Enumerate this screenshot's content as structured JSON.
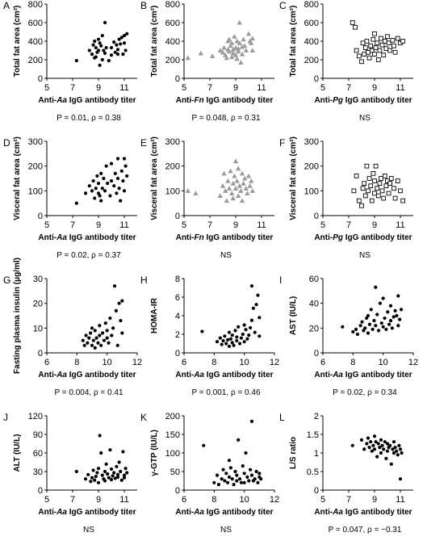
{
  "chart_data": [
    {
      "panel": "A",
      "type": "scatter",
      "marker": "circle",
      "color": "#000000",
      "xlabel": "Anti-Aa IgG antibody titer",
      "xlabel_italic": "Aa",
      "ylabel": "Total fat area (cm²)",
      "xticks": [
        "5",
        "7",
        "9",
        "11"
      ],
      "yticks": [
        "0",
        "200",
        "400",
        "600",
        "800"
      ],
      "xlim": [
        5,
        12
      ],
      "ylim": [
        0,
        800
      ],
      "note": "P = 0.01, ρ = 0.38",
      "x": [
        7.3,
        8.3,
        8.5,
        8.6,
        8.7,
        8.7,
        8.8,
        8.8,
        8.9,
        9.0,
        9.0,
        9.1,
        9.1,
        9.2,
        9.3,
        9.3,
        9.4,
        9.5,
        9.5,
        9.6,
        9.8,
        10.0,
        10.0,
        10.2,
        10.3,
        10.4,
        10.5,
        10.5,
        10.6,
        10.7,
        10.8,
        10.9,
        11.0,
        11.0,
        11.1,
        11.2
      ],
      "y": [
        190,
        300,
        260,
        360,
        220,
        400,
        330,
        230,
        280,
        420,
        300,
        140,
        380,
        350,
        200,
        460,
        300,
        600,
        270,
        330,
        190,
        330,
        250,
        390,
        280,
        360,
        310,
        260,
        420,
        370,
        440,
        260,
        380,
        460,
        300,
        480
      ]
    },
    {
      "panel": "B",
      "type": "scatter",
      "marker": "triangle",
      "color": "#9a9a9a",
      "xlabel": "Anti-Fn IgG antibody titer",
      "xlabel_italic": "Fn",
      "ylabel": "Total fat area (cm²)",
      "xticks": [
        "5",
        "7",
        "9",
        "11"
      ],
      "yticks": [
        "0",
        "200",
        "400",
        "600",
        "800"
      ],
      "xlim": [
        5,
        12
      ],
      "ylim": [
        0,
        800
      ],
      "note": "P = 0.048, ρ = 0.31",
      "x": [
        5.3,
        6.3,
        7.2,
        7.8,
        8.0,
        8.1,
        8.2,
        8.3,
        8.4,
        8.4,
        8.5,
        8.5,
        8.6,
        8.7,
        8.7,
        8.8,
        8.8,
        8.9,
        9.0,
        9.0,
        9.1,
        9.1,
        9.2,
        9.2,
        9.3,
        9.3,
        9.4,
        9.5,
        9.5,
        9.6,
        9.7,
        9.8,
        10.0,
        10.1,
        10.2,
        10.3,
        10.3
      ],
      "y": [
        220,
        270,
        240,
        300,
        280,
        330,
        250,
        220,
        400,
        310,
        290,
        420,
        350,
        230,
        380,
        310,
        270,
        450,
        330,
        250,
        400,
        210,
        320,
        290,
        600,
        380,
        170,
        340,
        260,
        420,
        350,
        300,
        480,
        400,
        380,
        300,
        430
      ]
    },
    {
      "panel": "C",
      "type": "scatter",
      "marker": "square-open",
      "color": "#000000",
      "xlabel": "Anti-Pg IgG antibody titer",
      "xlabel_italic": "Pg",
      "ylabel": "Total fat area (cm²)",
      "xticks": [
        "5",
        "7",
        "9",
        "11"
      ],
      "yticks": [
        "0",
        "200",
        "400",
        "600",
        "800"
      ],
      "xlim": [
        5,
        12
      ],
      "ylim": [
        0,
        800
      ],
      "note": "NS",
      "x": [
        7.3,
        7.5,
        7.6,
        7.8,
        8.0,
        8.1,
        8.2,
        8.3,
        8.4,
        8.5,
        8.6,
        8.7,
        8.8,
        8.9,
        9.0,
        9.0,
        9.1,
        9.2,
        9.3,
        9.4,
        9.5,
        9.6,
        9.7,
        9.8,
        9.9,
        10.0,
        10.1,
        10.2,
        10.4,
        10.5,
        10.6,
        10.8,
        11.0,
        11.2
      ],
      "y": [
        600,
        550,
        300,
        240,
        180,
        380,
        260,
        330,
        400,
        280,
        220,
        350,
        300,
        420,
        260,
        480,
        330,
        380,
        200,
        300,
        430,
        360,
        250,
        400,
        320,
        450,
        380,
        300,
        410,
        350,
        280,
        430,
        380,
        400
      ]
    },
    {
      "panel": "D",
      "type": "scatter",
      "marker": "circle",
      "color": "#000000",
      "xlabel": "Anti-Aa IgG antibody titer",
      "xlabel_italic": "Aa",
      "ylabel": "Visceral fat area (cm²)",
      "xticks": [
        "5",
        "7",
        "9",
        "11"
      ],
      "yticks": [
        "0",
        "100",
        "200",
        "300"
      ],
      "xlim": [
        5,
        12
      ],
      "ylim": [
        0,
        300
      ],
      "note": "P = 0.02, ρ = 0.37",
      "x": [
        7.3,
        8.0,
        8.3,
        8.5,
        8.6,
        8.7,
        8.8,
        8.9,
        9.0,
        9.0,
        9.1,
        9.2,
        9.2,
        9.3,
        9.4,
        9.5,
        9.6,
        9.7,
        9.9,
        10.0,
        10.0,
        10.2,
        10.3,
        10.4,
        10.5,
        10.5,
        10.6,
        10.7,
        10.8,
        10.9,
        11.0,
        11.0,
        11.1,
        11.2
      ],
      "y": [
        50,
        90,
        120,
        100,
        140,
        70,
        110,
        160,
        90,
        130,
        80,
        170,
        60,
        110,
        150,
        100,
        200,
        130,
        80,
        210,
        140,
        120,
        170,
        90,
        230,
        150,
        110,
        60,
        180,
        140,
        230,
        100,
        200,
        160
      ]
    },
    {
      "panel": "E",
      "type": "scatter",
      "marker": "triangle",
      "color": "#9a9a9a",
      "xlabel": "Anti-Fn IgG antibody titer",
      "xlabel_italic": "Fn",
      "ylabel": "Visceral fat area (cm²)",
      "xticks": [
        "5",
        "7",
        "9",
        "11"
      ],
      "yticks": [
        "0",
        "100",
        "200",
        "300"
      ],
      "xlim": [
        5,
        12
      ],
      "ylim": [
        0,
        300
      ],
      "note": "NS",
      "x": [
        5.3,
        5.9,
        7.8,
        8.0,
        8.1,
        8.2,
        8.3,
        8.4,
        8.5,
        8.6,
        8.7,
        8.8,
        8.8,
        8.9,
        9.0,
        9.0,
        9.1,
        9.2,
        9.2,
        9.3,
        9.4,
        9.5,
        9.5,
        9.6,
        9.7,
        9.8,
        9.9,
        10.0,
        10.1,
        10.2,
        10.3
      ],
      "y": [
        100,
        90,
        80,
        120,
        170,
        100,
        60,
        140,
        110,
        180,
        90,
        130,
        70,
        160,
        220,
        110,
        140,
        80,
        190,
        120,
        100,
        170,
        60,
        130,
        150,
        110,
        90,
        160,
        120,
        140,
        100
      ]
    },
    {
      "panel": "F",
      "type": "scatter",
      "marker": "square-open",
      "color": "#000000",
      "xlabel": "Anti-Pg IgG antibody titer",
      "xlabel_italic": "Pg",
      "ylabel": "Visceral fat area (cm²)",
      "xticks": [
        "5",
        "7",
        "9",
        "11"
      ],
      "yticks": [
        "0",
        "100",
        "200",
        "300"
      ],
      "xlim": [
        5,
        12
      ],
      "ylim": [
        0,
        300
      ],
      "note": "NS",
      "x": [
        7.4,
        7.6,
        7.8,
        8.0,
        8.1,
        8.2,
        8.3,
        8.4,
        8.5,
        8.6,
        8.7,
        8.8,
        8.9,
        9.0,
        9.0,
        9.1,
        9.2,
        9.3,
        9.4,
        9.5,
        9.6,
        9.7,
        9.8,
        9.9,
        10.0,
        10.1,
        10.2,
        10.3,
        10.5,
        10.6,
        10.8,
        11.0,
        11.2
      ],
      "y": [
        100,
        160,
        60,
        40,
        110,
        130,
        80,
        200,
        100,
        150,
        120,
        60,
        170,
        140,
        90,
        200,
        110,
        80,
        130,
        150,
        100,
        70,
        160,
        120,
        140,
        90,
        130,
        150,
        110,
        70,
        140,
        100,
        60
      ]
    },
    {
      "panel": "G",
      "type": "scatter",
      "marker": "circle",
      "color": "#000000",
      "xlabel": "Anti-Aa IgG antibody titer",
      "xlabel_italic": "Aa",
      "ylabel": "Fasting plasma insulin (μg/ml)",
      "xticks": [
        "6",
        "8",
        "10",
        "12"
      ],
      "yticks": [
        "0",
        "10",
        "20",
        "30"
      ],
      "xlim": [
        6,
        12
      ],
      "ylim": [
        0,
        30
      ],
      "note": "P = 0.004, ρ = 0.41",
      "x": [
        8.4,
        8.5,
        8.6,
        8.7,
        8.8,
        8.9,
        9.0,
        9.0,
        9.1,
        9.2,
        9.2,
        9.3,
        9.4,
        9.5,
        9.5,
        9.6,
        9.7,
        9.8,
        9.9,
        10.0,
        10.0,
        10.1,
        10.2,
        10.3,
        10.4,
        10.5,
        10.6,
        10.7,
        10.8,
        10.9,
        11.0,
        11.0
      ],
      "y": [
        5,
        3,
        7,
        4,
        6,
        8,
        3,
        10,
        5,
        9,
        2,
        6,
        4,
        11,
        7,
        3,
        8,
        5,
        12,
        6,
        9,
        4,
        14,
        7,
        10,
        27,
        17,
        3,
        20,
        13,
        8,
        21
      ]
    },
    {
      "panel": "H",
      "type": "scatter",
      "marker": "circle",
      "color": "#000000",
      "xlabel": "Anti-Aa IgG antibody titer",
      "xlabel_italic": "Aa",
      "ylabel": "HOMA-IR",
      "xticks": [
        "6",
        "8",
        "10",
        "12"
      ],
      "yticks": [
        "0",
        "2",
        "4",
        "6",
        "8"
      ],
      "xlim": [
        6,
        12
      ],
      "ylim": [
        0,
        8
      ],
      "note": "P = 0.001, ρ = 0.46",
      "x": [
        7.2,
        8.2,
        8.4,
        8.5,
        8.6,
        8.7,
        8.8,
        8.9,
        9.0,
        9.0,
        9.1,
        9.2,
        9.2,
        9.3,
        9.4,
        9.5,
        9.5,
        9.6,
        9.7,
        9.8,
        9.9,
        10.0,
        10.0,
        10.1,
        10.2,
        10.3,
        10.4,
        10.5,
        10.5,
        10.6,
        10.7,
        10.8,
        10.9,
        11.0,
        11.0
      ],
      "y": [
        2.3,
        1.2,
        1.6,
        0.9,
        1.3,
        1.8,
        1.0,
        1.4,
        2.2,
        0.7,
        1.5,
        1.1,
        1.9,
        0.8,
        2.4,
        1.3,
        1.7,
        2.8,
        1.0,
        1.6,
        2.0,
        1.2,
        3.0,
        2.5,
        1.5,
        1.9,
        2.7,
        7.2,
        3.5,
        4.8,
        2.2,
        5.2,
        6.2,
        3.8,
        1.8
      ]
    },
    {
      "panel": "I",
      "type": "scatter",
      "marker": "circle",
      "color": "#000000",
      "xlabel": "Anti-Aa IgG antibody titer",
      "xlabel_italic": "Aa",
      "ylabel": "AST (IU/L)",
      "xticks": [
        "6",
        "8",
        "10",
        "12"
      ],
      "yticks": [
        "0",
        "20",
        "40",
        "60"
      ],
      "xlim": [
        6,
        12
      ],
      "ylim": [
        0,
        60
      ],
      "note": "P = 0.02, ρ = 0.34",
      "x": [
        7.3,
        8.0,
        8.2,
        8.3,
        8.5,
        8.6,
        8.7,
        8.8,
        8.9,
        9.0,
        9.0,
        9.1,
        9.2,
        9.3,
        9.4,
        9.5,
        9.5,
        9.6,
        9.7,
        9.8,
        9.9,
        10.0,
        10.0,
        10.1,
        10.2,
        10.3,
        10.4,
        10.5,
        10.5,
        10.6,
        10.7,
        10.8,
        10.9,
        11.0,
        11.0,
        11.1,
        11.2
      ],
      "y": [
        21,
        17,
        19,
        15,
        22,
        25,
        18,
        20,
        28,
        16,
        30,
        23,
        35,
        19,
        26,
        53,
        22,
        31,
        18,
        40,
        24,
        21,
        44,
        28,
        19,
        33,
        23,
        26,
        38,
        20,
        29,
        34,
        30,
        22,
        46,
        27,
        35
      ]
    },
    {
      "panel": "J",
      "type": "scatter",
      "marker": "circle",
      "color": "#000000",
      "xlabel": "Anti-Aa IgG antibody titer",
      "xlabel_italic": "Aa",
      "ylabel": "ALT (IU/L)",
      "xticks": [
        "5",
        "7",
        "9",
        "11"
      ],
      "yticks": [
        "0",
        "30",
        "60",
        "90",
        "120"
      ],
      "xlim": [
        5,
        12
      ],
      "ylim": [
        0,
        120
      ],
      "note": "NS",
      "x": [
        7.3,
        8.0,
        8.2,
        8.4,
        8.5,
        8.6,
        8.7,
        8.8,
        8.9,
        9.0,
        9.0,
        9.1,
        9.2,
        9.3,
        9.4,
        9.5,
        9.5,
        9.6,
        9.7,
        9.8,
        9.9,
        10.0,
        10.0,
        10.1,
        10.2,
        10.3,
        10.4,
        10.5,
        10.5,
        10.6,
        10.7,
        10.8,
        10.9,
        11.0,
        11.0,
        11.1,
        11.2
      ],
      "y": [
        30,
        18,
        25,
        14,
        20,
        32,
        16,
        22,
        28,
        12,
        35,
        88,
        60,
        24,
        18,
        30,
        15,
        42,
        26,
        20,
        65,
        17,
        34,
        23,
        28,
        19,
        38,
        25,
        21,
        45,
        30,
        16,
        62,
        24,
        20,
        35,
        28
      ]
    },
    {
      "panel": "K",
      "type": "scatter",
      "marker": "circle",
      "color": "#000000",
      "xlabel": "Anti-Aa IgG antibody titer",
      "xlabel_italic": "Aa",
      "ylabel": "γ-GTP (IU/L)",
      "xticks": [
        "6",
        "8",
        "10",
        "12"
      ],
      "yticks": [
        "0",
        "50",
        "100",
        "150",
        "200"
      ],
      "xlim": [
        6,
        12
      ],
      "ylim": [
        0,
        200
      ],
      "note": "NS",
      "x": [
        7.3,
        8.0,
        8.2,
        8.3,
        8.5,
        8.6,
        8.7,
        8.8,
        8.9,
        9.0,
        9.0,
        9.1,
        9.2,
        9.3,
        9.4,
        9.5,
        9.5,
        9.6,
        9.7,
        9.8,
        9.9,
        10.0,
        10.0,
        10.1,
        10.2,
        10.3,
        10.4,
        10.5,
        10.5,
        10.6,
        10.7,
        10.8,
        10.9,
        11.0,
        11.0,
        11.1
      ],
      "y": [
        120,
        20,
        40,
        15,
        30,
        55,
        25,
        45,
        20,
        35,
        80,
        60,
        30,
        15,
        50,
        25,
        40,
        135,
        30,
        20,
        65,
        45,
        20,
        100,
        35,
        25,
        55,
        185,
        40,
        25,
        30,
        50,
        20,
        35,
        45,
        30
      ]
    },
    {
      "panel": "L",
      "type": "scatter",
      "marker": "circle",
      "color": "#000000",
      "xlabel": "Anti-Aa IgG antibody titer",
      "xlabel_italic": "Aa",
      "ylabel": "L/S ratio",
      "xticks": [
        "5",
        "7",
        "9",
        "11"
      ],
      "yticks": [
        "0",
        "0.5",
        "1",
        "1.5",
        "2"
      ],
      "xlim": [
        5,
        12
      ],
      "ylim": [
        0,
        2
      ],
      "note": "P = 0.047, ρ = −0.31",
      "x": [
        7.3,
        8.0,
        8.2,
        8.4,
        8.5,
        8.6,
        8.7,
        8.8,
        8.9,
        9.0,
        9.0,
        9.1,
        9.2,
        9.3,
        9.4,
        9.5,
        9.5,
        9.6,
        9.7,
        9.8,
        9.9,
        10.0,
        10.0,
        10.1,
        10.2,
        10.3,
        10.4,
        10.5,
        10.5,
        10.6,
        10.7,
        10.8,
        10.9,
        11.0,
        11.0,
        11.1
      ],
      "y": [
        1.2,
        1.35,
        1.1,
        1.25,
        1.4,
        1.15,
        1.3,
        1.05,
        1.2,
        1.45,
        1.1,
        1.3,
        0.9,
        1.25,
        1.15,
        1.35,
        1.0,
        1.2,
        1.1,
        1.3,
        0.85,
        1.25,
        1.05,
        1.15,
        1.2,
        0.7,
        1.1,
        1.3,
        1.0,
        1.15,
        1.05,
        0.95,
        1.2,
        1.1,
        0.3,
        1.0
      ]
    }
  ]
}
